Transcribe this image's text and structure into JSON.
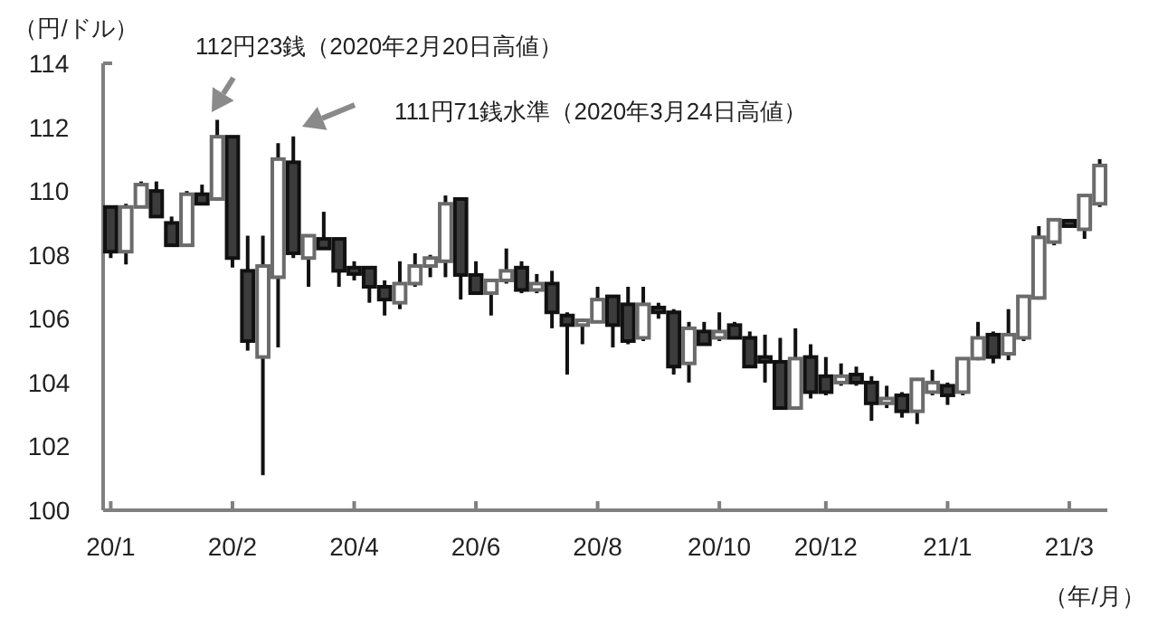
{
  "chart_data": {
    "type": "candlestick",
    "ylabel": "（円/ドル）",
    "xlabel": "（年/月）",
    "categories": [
      "20/1",
      null,
      null,
      null,
      null,
      null,
      null,
      null,
      "20/2",
      null,
      null,
      null,
      null,
      null,
      null,
      null,
      "20/4",
      null,
      null,
      null,
      null,
      null,
      null,
      null,
      "20/6",
      null,
      null,
      null,
      null,
      null,
      null,
      null,
      "20/8",
      null,
      null,
      null,
      null,
      null,
      null,
      null,
      "20/10",
      null,
      null,
      null,
      null,
      null,
      null,
      "20/12",
      null,
      null,
      null,
      null,
      null,
      null,
      null,
      "21/1",
      null,
      null,
      null,
      null,
      null,
      null,
      null,
      "21/3",
      null,
      null
    ],
    "ohlc": [
      [
        109.5,
        109.5,
        107.9,
        108.1
      ],
      [
        108.1,
        109.6,
        107.7,
        109.5
      ],
      [
        109.5,
        110.3,
        109.5,
        110.2
      ],
      [
        110.0,
        110.3,
        109.2,
        109.2
      ],
      [
        109.0,
        109.2,
        108.3,
        108.3
      ],
      [
        108.3,
        110.0,
        108.3,
        109.9
      ],
      [
        109.9,
        110.2,
        109.6,
        109.6
      ],
      [
        109.75,
        112.23,
        109.7,
        111.7
      ],
      [
        111.7,
        111.7,
        107.6,
        107.9
      ],
      [
        107.5,
        108.6,
        105.0,
        105.3
      ],
      [
        104.8,
        108.6,
        101.1,
        107.65
      ],
      [
        107.3,
        111.5,
        105.1,
        111.0
      ],
      [
        110.9,
        111.71,
        107.9,
        108.05
      ],
      [
        107.9,
        108.6,
        107.0,
        108.6
      ],
      [
        108.5,
        109.35,
        108.2,
        108.2
      ],
      [
        108.5,
        108.5,
        107.0,
        107.5
      ],
      [
        107.6,
        107.8,
        107.2,
        107.4
      ],
      [
        107.6,
        107.6,
        106.5,
        107.0
      ],
      [
        107.0,
        107.2,
        106.1,
        106.6
      ],
      [
        106.5,
        107.8,
        106.3,
        107.1
      ],
      [
        107.1,
        108.05,
        107.0,
        107.65
      ],
      [
        107.65,
        108.0,
        107.3,
        107.9
      ],
      [
        107.8,
        109.86,
        107.3,
        109.6
      ],
      [
        109.75,
        109.75,
        106.6,
        107.37
      ],
      [
        107.37,
        107.8,
        106.8,
        106.8
      ],
      [
        106.8,
        107.2,
        106.1,
        107.2
      ],
      [
        107.2,
        108.2,
        107.1,
        107.5
      ],
      [
        107.6,
        107.8,
        106.8,
        106.9
      ],
      [
        106.9,
        107.4,
        106.8,
        107.1
      ],
      [
        107.1,
        107.5,
        105.7,
        106.2
      ],
      [
        106.1,
        106.2,
        104.25,
        105.8
      ],
      [
        105.8,
        106.0,
        105.2,
        105.95
      ],
      [
        105.9,
        107.0,
        105.9,
        106.6
      ],
      [
        106.7,
        106.7,
        105.1,
        105.8
      ],
      [
        106.45,
        107.0,
        105.2,
        105.3
      ],
      [
        105.4,
        107.0,
        105.3,
        106.45
      ],
      [
        106.35,
        106.5,
        106.0,
        106.2
      ],
      [
        106.2,
        106.3,
        104.25,
        104.5
      ],
      [
        104.6,
        105.9,
        104.0,
        105.7
      ],
      [
        105.6,
        105.9,
        105.2,
        105.2
      ],
      [
        105.4,
        106.2,
        105.3,
        105.6
      ],
      [
        105.8,
        105.9,
        105.4,
        105.4
      ],
      [
        105.4,
        105.6,
        104.5,
        104.5
      ],
      [
        104.8,
        105.5,
        104.0,
        104.65
      ],
      [
        104.65,
        105.4,
        103.2,
        103.2
      ],
      [
        103.2,
        105.7,
        103.2,
        104.75
      ],
      [
        104.8,
        105.2,
        103.5,
        103.7
      ],
      [
        104.2,
        104.8,
        103.6,
        103.7
      ],
      [
        104.0,
        104.6,
        103.9,
        104.2
      ],
      [
        104.25,
        104.5,
        103.9,
        104.0
      ],
      [
        104.0,
        104.2,
        102.8,
        103.35
      ],
      [
        103.35,
        103.9,
        103.2,
        103.5
      ],
      [
        103.6,
        103.7,
        102.9,
        103.1
      ],
      [
        103.1,
        104.1,
        102.7,
        104.1
      ],
      [
        103.7,
        104.4,
        103.6,
        104.0
      ],
      [
        103.9,
        104.0,
        103.3,
        103.6
      ],
      [
        103.7,
        104.75,
        103.6,
        104.75
      ],
      [
        104.75,
        105.9,
        104.7,
        105.4
      ],
      [
        105.5,
        105.6,
        104.6,
        104.8
      ],
      [
        104.9,
        106.3,
        104.7,
        105.5
      ],
      [
        105.4,
        106.7,
        105.3,
        106.7
      ],
      [
        106.65,
        108.9,
        106.6,
        108.55
      ],
      [
        108.4,
        109.1,
        108.3,
        109.1
      ],
      [
        109.07,
        109.1,
        108.9,
        108.9
      ],
      [
        108.8,
        109.86,
        108.5,
        109.86
      ],
      [
        109.6,
        111.0,
        109.5,
        110.8
      ]
    ],
    "colors": [
      "#3c3c3c",
      "#ffffff",
      "#ffffff",
      "#3c3c3c",
      "#3c3c3c",
      "#ffffff",
      "#3c3c3c",
      "#ffffff",
      "#3c3c3c",
      "#3c3c3c",
      "#ffffff",
      "#ffffff",
      "#3c3c3c",
      "#ffffff",
      "#3c3c3c",
      "#3c3c3c",
      "#3c3c3c",
      "#3c3c3c",
      "#3c3c3c",
      "#ffffff",
      "#ffffff",
      "#ffffff",
      "#ffffff",
      "#3c3c3c",
      "#3c3c3c",
      "#ffffff",
      "#ffffff",
      "#3c3c3c",
      "#ffffff",
      "#3c3c3c",
      "#3c3c3c",
      "#ffffff",
      "#ffffff",
      "#3c3c3c",
      "#3c3c3c",
      "#ffffff",
      "#3c3c3c",
      "#3c3c3c",
      "#ffffff",
      "#3c3c3c",
      "#ffffff",
      "#3c3c3c",
      "#3c3c3c",
      "#3c3c3c",
      "#3c3c3c",
      "#ffffff",
      "#3c3c3c",
      "#3c3c3c",
      "#ffffff",
      "#3c3c3c",
      "#3c3c3c",
      "#ffffff",
      "#3c3c3c",
      "#ffffff",
      "#ffffff",
      "#3c3c3c",
      "#ffffff",
      "#ffffff",
      "#3c3c3c",
      "#ffffff",
      "#ffffff",
      "#ffffff",
      "#ffffff",
      "#3c3c3c",
      "#ffffff",
      "#ffffff"
    ],
    "ylim": [
      100,
      114
    ],
    "yticks": [
      100,
      102,
      104,
      106,
      108,
      110,
      112,
      114
    ],
    "grid": false,
    "annotations": [
      "112円23銭（2020年2月20日高値）",
      "111円71銭水準（2020年3月24日高値）"
    ]
  }
}
